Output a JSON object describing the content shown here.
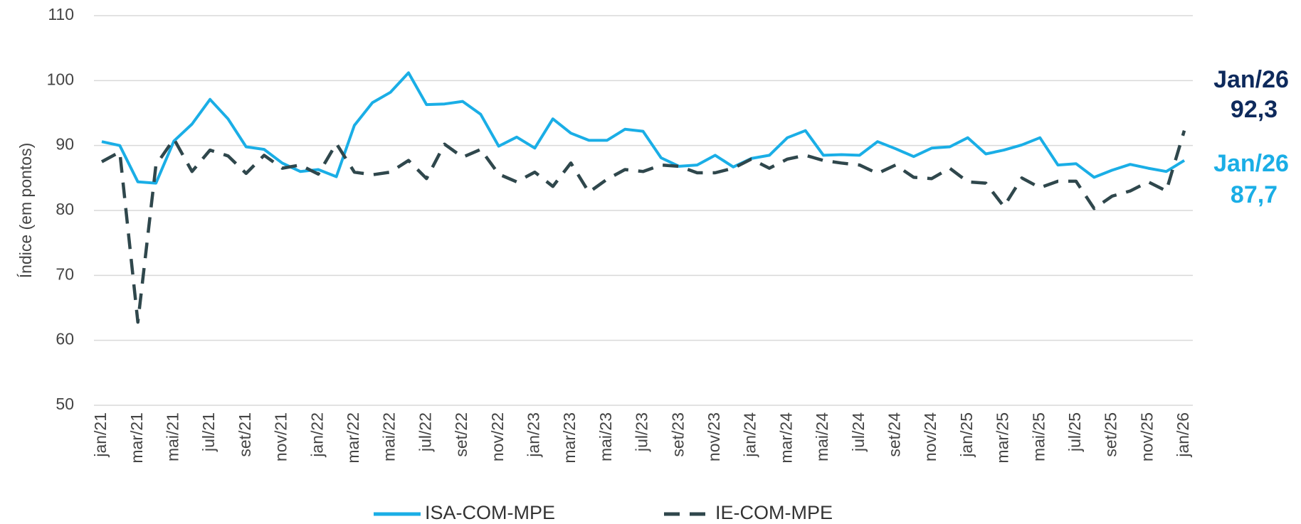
{
  "chart_data": {
    "type": "line",
    "y_label": "Índice (em pontos)",
    "categories": [
      "jan/21",
      null,
      "mar/21",
      null,
      "mai/21",
      null,
      "jul/21",
      null,
      "set/21",
      null,
      "nov/21",
      null,
      "jan/22",
      null,
      "mar/22",
      null,
      "mai/22",
      null,
      "jul/22",
      null,
      "set/22",
      null,
      "nov/22",
      null,
      "jan/23",
      null,
      "mar/23",
      null,
      "mai/23",
      null,
      "jul/23",
      null,
      "set/23",
      null,
      "nov/23",
      null,
      "jan/24",
      null,
      "mar/24",
      null,
      "mai/24",
      null,
      "jul/24",
      null,
      "set/24",
      null,
      "nov/24",
      null,
      "jan/25",
      null,
      "mar/25",
      null,
      "mai/25",
      null,
      "jul/25",
      null,
      "set/25",
      null,
      "nov/25",
      null,
      "jan/26"
    ],
    "series": [
      {
        "name": "ISA-COM-MPE",
        "color": "#1aaee6",
        "dash": false,
        "values": [
          90.6,
          90.0,
          84.4,
          84.2,
          90.7,
          93.3,
          97.1,
          94.1,
          89.8,
          89.4,
          87.3,
          86.0,
          86.3,
          85.2,
          93.1,
          96.6,
          98.2,
          101.2,
          96.3,
          96.4,
          96.8,
          94.8,
          89.9,
          91.3,
          89.6,
          94.1,
          91.9,
          90.8,
          90.8,
          92.5,
          92.2,
          88.1,
          86.8,
          87.0,
          88.5,
          86.7,
          88.0,
          88.5,
          91.2,
          92.3,
          88.5,
          88.6,
          88.5,
          90.6,
          89.5,
          88.3,
          89.6,
          89.8,
          91.2,
          88.7,
          89.3,
          90.1,
          91.2,
          87.0,
          87.2,
          85.1,
          86.2,
          87.1,
          86.5,
          86.0,
          87.7
        ]
      },
      {
        "name": "IE-COM-MPE",
        "color": "#2f474c",
        "dash": true,
        "values": [
          87.5,
          89.0,
          62.8,
          87.0,
          91.0,
          86.0,
          89.3,
          88.4,
          85.7,
          88.5,
          86.5,
          87.0,
          85.6,
          90.3,
          85.9,
          85.5,
          85.9,
          87.7,
          84.9,
          90.2,
          88.2,
          89.4,
          85.6,
          84.4,
          85.9,
          83.7,
          87.3,
          82.8,
          84.8,
          86.3,
          86.0,
          87.0,
          86.8,
          85.8,
          85.8,
          86.5,
          87.9,
          86.5,
          87.9,
          88.5,
          87.7,
          87.3,
          87.0,
          85.7,
          87.0,
          85.1,
          84.9,
          86.5,
          84.4,
          84.2,
          80.6,
          85.0,
          83.5,
          84.5,
          84.5,
          80.3,
          82.2,
          83.0,
          84.4,
          83.0,
          92.3
        ]
      }
    ],
    "annotations": [
      {
        "label": "Jan/26",
        "value": "92,3",
        "color": "#0e2a5c"
      },
      {
        "label": "Jan/26",
        "value": "87,7",
        "color": "#1aaee6"
      }
    ],
    "ylim": [
      50,
      110
    ],
    "yticks": [
      50,
      60,
      70,
      80,
      90,
      100,
      110
    ],
    "grid": true,
    "legend": "bottom"
  }
}
